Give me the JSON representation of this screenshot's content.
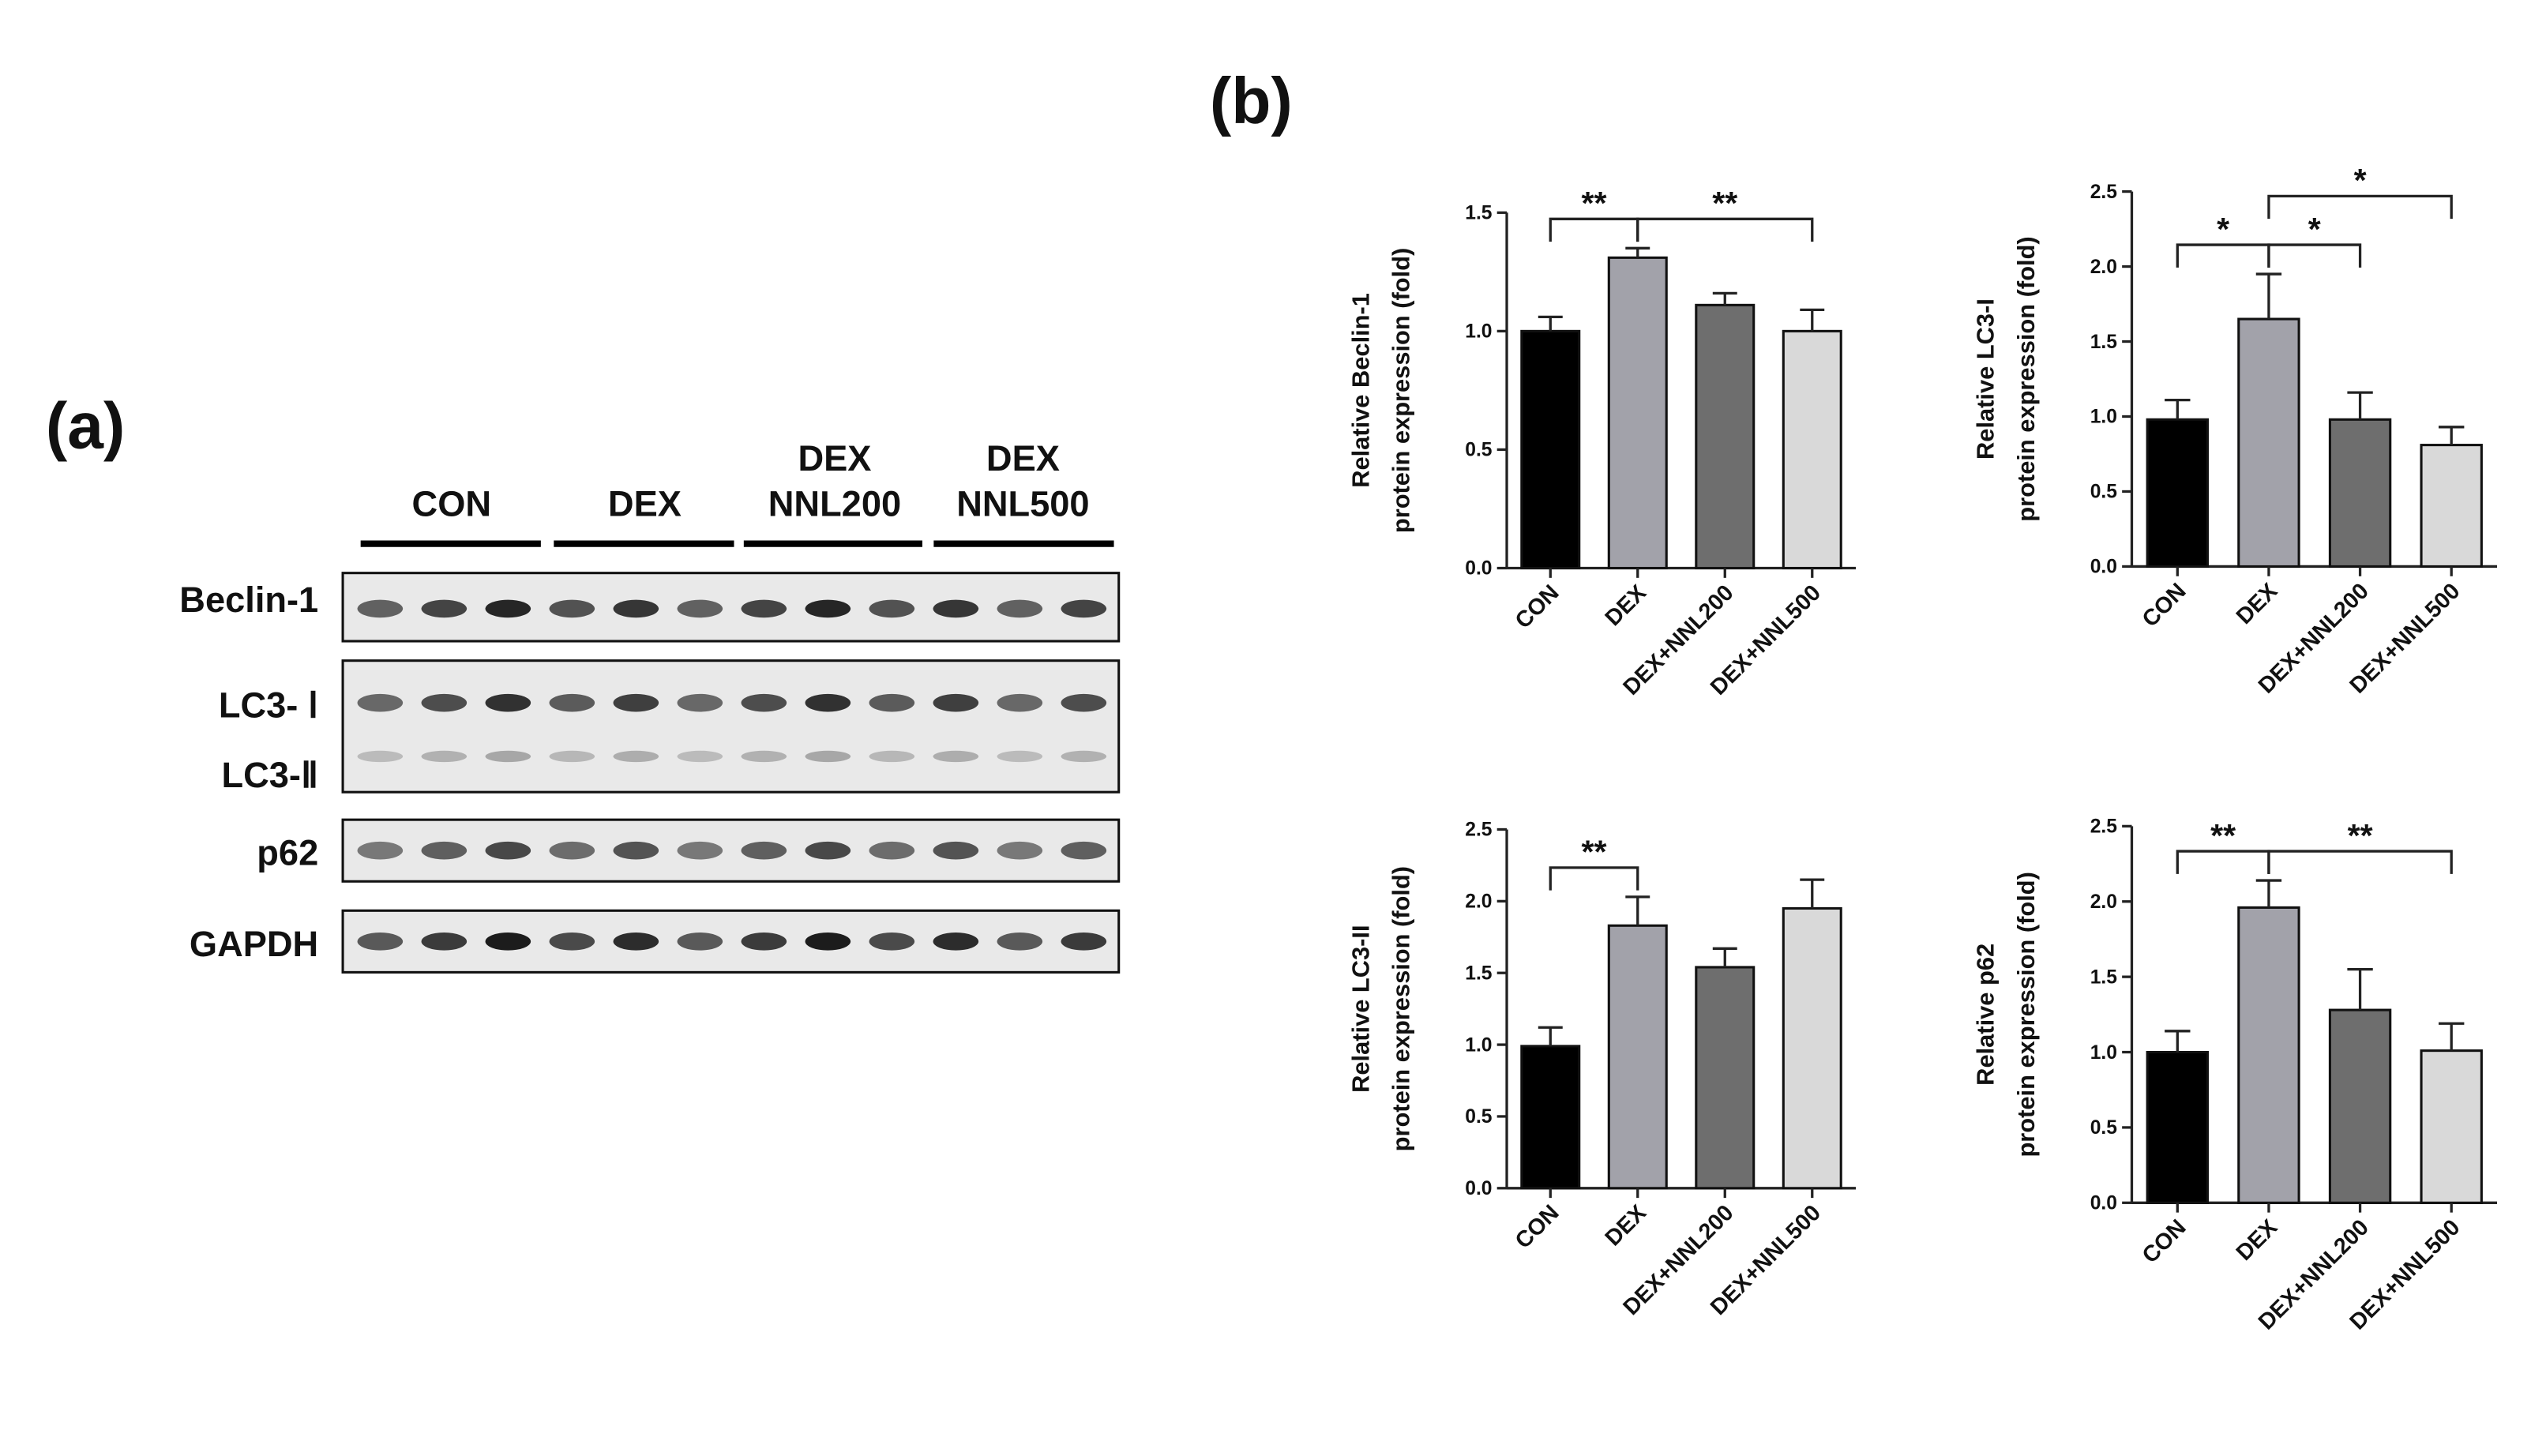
{
  "panel_a": {
    "label": "(a)",
    "groups": [
      [
        "CON"
      ],
      [
        "DEX"
      ],
      [
        "DEX",
        "NNL200"
      ],
      [
        "DEX",
        "NNL500"
      ]
    ],
    "rows": [
      "Beclin-1",
      "LC3- Ⅰ",
      "LC3-Ⅱ",
      "p62",
      "GAPDH"
    ]
  },
  "panel_b": {
    "label": "(b)"
  },
  "chart_data": [
    {
      "type": "bar",
      "ylabel": [
        "Relative Beclin-1",
        "protein expression (fold)"
      ],
      "categories": [
        "CON",
        "DEX",
        "DEX+NNL200",
        "DEX+NNL500"
      ],
      "values": [
        1.0,
        1.31,
        1.11,
        1.0
      ],
      "errors": [
        0.06,
        0.04,
        0.05,
        0.09
      ],
      "colors": [
        "#000000",
        "#a2a2aa",
        "#6e6e6e",
        "#d9d9d9"
      ],
      "ylim": [
        0,
        1.5
      ],
      "yticks": [
        {
          "value": 0,
          "label": "0.0"
        },
        {
          "value": 0.5,
          "label": "0.5"
        },
        {
          "value": 1,
          "label": "1.0"
        },
        {
          "value": 1.5,
          "label": "1.5"
        }
      ],
      "significance": [
        {
          "from": 0,
          "to": 1,
          "label": "**"
        },
        {
          "from": 1,
          "to": 3,
          "label": "**"
        }
      ]
    },
    {
      "type": "bar",
      "ylabel": [
        "Relative LC3-I",
        "protein expression (fold)"
      ],
      "categories": [
        "CON",
        "DEX",
        "DEX+NNL200",
        "DEX+NNL500"
      ],
      "values": [
        0.98,
        1.65,
        0.98,
        0.81
      ],
      "errors": [
        0.13,
        0.3,
        0.18,
        0.12
      ],
      "colors": [
        "#000000",
        "#a2a2aa",
        "#6e6e6e",
        "#d9d9d9"
      ],
      "ylim": [
        0,
        2.5
      ],
      "yticks": [
        {
          "value": 0,
          "label": "0.0"
        },
        {
          "value": 0.5,
          "label": "0.5"
        },
        {
          "value": 1,
          "label": "1.0"
        },
        {
          "value": 1.5,
          "label": "1.5"
        },
        {
          "value": 2,
          "label": "2.0"
        },
        {
          "value": 2.5,
          "label": "2.5"
        }
      ],
      "significance": [
        {
          "from": 0,
          "to": 1,
          "label": "*"
        },
        {
          "from": 1,
          "to": 2,
          "label": "*"
        },
        {
          "from": 1,
          "to": 3,
          "label": "*"
        }
      ]
    },
    {
      "type": "bar",
      "ylabel": [
        "Relative LC3-II",
        "protein expression (fold)"
      ],
      "categories": [
        "CON",
        "DEX",
        "DEX+NNL200",
        "DEX+NNL500"
      ],
      "values": [
        0.99,
        1.83,
        1.54,
        1.95
      ],
      "errors": [
        0.13,
        0.2,
        0.13,
        0.2
      ],
      "colors": [
        "#000000",
        "#a2a2aa",
        "#6e6e6e",
        "#d9d9d9"
      ],
      "ylim": [
        0,
        2.5
      ],
      "yticks": [
        {
          "value": 0,
          "label": "0.0"
        },
        {
          "value": 0.5,
          "label": "0.5"
        },
        {
          "value": 1,
          "label": "1.0"
        },
        {
          "value": 1.5,
          "label": "1.5"
        },
        {
          "value": 2,
          "label": "2.0"
        },
        {
          "value": 2.5,
          "label": "2.5"
        }
      ],
      "significance": [
        {
          "from": 0,
          "to": 1,
          "label": "**"
        }
      ]
    },
    {
      "type": "bar",
      "ylabel": [
        "Relative p62",
        "protein expression (fold)"
      ],
      "categories": [
        "CON",
        "DEX",
        "DEX+NNL200",
        "DEX+NNL500"
      ],
      "values": [
        1.0,
        1.96,
        1.28,
        1.01
      ],
      "errors": [
        0.14,
        0.18,
        0.27,
        0.18
      ],
      "colors": [
        "#000000",
        "#a2a2aa",
        "#6e6e6e",
        "#d9d9d9"
      ],
      "ylim": [
        0,
        2.5
      ],
      "yticks": [
        {
          "value": 0,
          "label": "0.0"
        },
        {
          "value": 0.5,
          "label": "0.5"
        },
        {
          "value": 1,
          "label": "1.0"
        },
        {
          "value": 1.5,
          "label": "1.5"
        },
        {
          "value": 2,
          "label": "2.0"
        },
        {
          "value": 2.5,
          "label": "2.5"
        }
      ],
      "significance": [
        {
          "from": 0,
          "to": 1,
          "label": "**"
        },
        {
          "from": 1,
          "to": 3,
          "label": "**"
        }
      ]
    }
  ]
}
